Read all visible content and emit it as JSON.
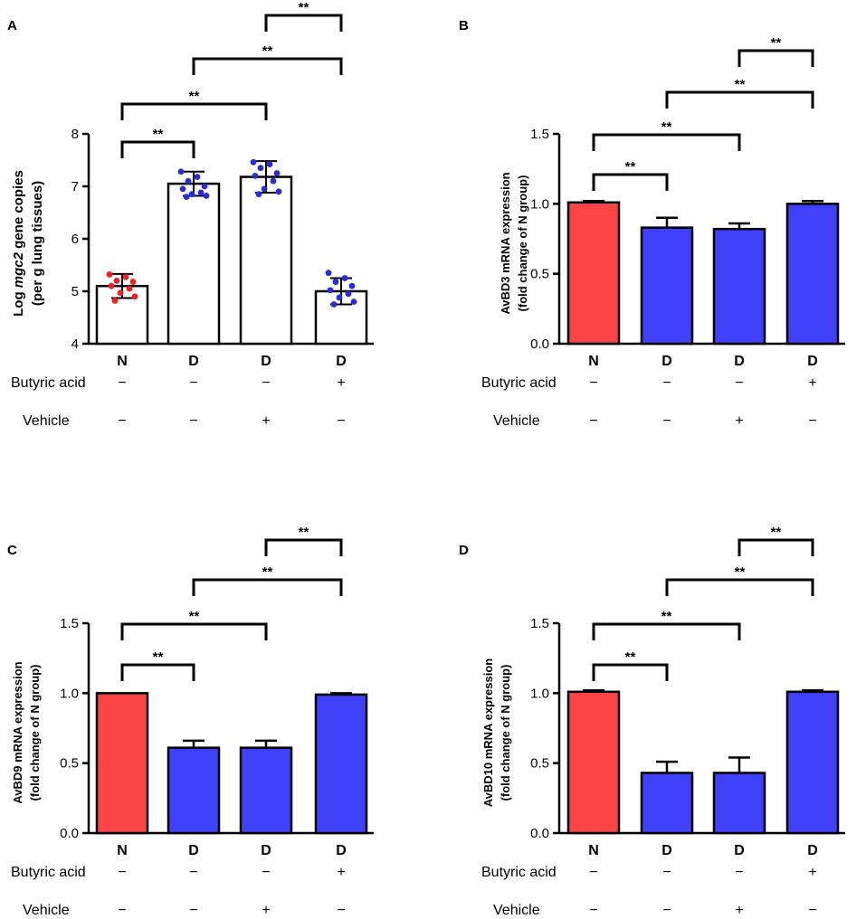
{
  "colors": {
    "n_bar": "#fa4446",
    "d_bar": "#4040f9",
    "n_dot": "#f02020",
    "d_dot": "#2a2ad8",
    "open_bar": "#ffffff"
  },
  "conditions": {
    "categories": [
      "N",
      "D",
      "D",
      "D"
    ],
    "butyric_label": "Butyric acid",
    "butyric": [
      "−",
      "−",
      "−",
      "+"
    ],
    "vehicle_label": "Vehicle",
    "vehicle": [
      "−",
      "−",
      "+",
      "−"
    ]
  },
  "chart_data": [
    {
      "panel": "A",
      "type": "bar",
      "style": "scatter-open",
      "ylabel_prefix": "Log ",
      "ylabel_italic": "mgc2",
      "ylabel_suffix": " gene copies",
      "ylabel2": "(per g lung tissues)",
      "ylim": [
        4,
        8
      ],
      "yticks": [
        4,
        5,
        6,
        7,
        8
      ],
      "ytick_labels": [
        "4",
        "5",
        "6",
        "7",
        "8"
      ],
      "categories": [
        "N",
        "D",
        "D",
        "D"
      ],
      "values": [
        5.1,
        7.05,
        7.18,
        5.0
      ],
      "errors": [
        0.23,
        0.23,
        0.3,
        0.25
      ],
      "points": [
        [
          5.32,
          5.27,
          5.2,
          5.18,
          5.1,
          5.05,
          4.97,
          4.9,
          4.82
        ],
        [
          7.28,
          7.18,
          7.1,
          7.0,
          6.95,
          6.88,
          6.85,
          6.82,
          6.8
        ],
        [
          7.46,
          7.42,
          7.35,
          7.25,
          7.2,
          7.1,
          6.95,
          6.9,
          6.85
        ],
        [
          5.35,
          5.25,
          5.18,
          5.1,
          5.02,
          4.95,
          4.88,
          4.8,
          4.75
        ]
      ],
      "brackets": [
        {
          "from": 0,
          "to": 1,
          "label": "**"
        },
        {
          "from": 0,
          "to": 2,
          "label": "**"
        },
        {
          "from": 1,
          "to": 3,
          "label": "**"
        },
        {
          "from": 2,
          "to": 3,
          "label": "**"
        }
      ]
    },
    {
      "panel": "B",
      "type": "bar",
      "style": "filled",
      "ylabel": "AvBD3 mRNA expression",
      "ylabel2": "(fold change of N group)",
      "ylim": [
        0,
        1.5
      ],
      "yticks": [
        0,
        0.5,
        1.0,
        1.5
      ],
      "ytick_labels": [
        "0.0",
        "0.5",
        "1.0",
        "1.5"
      ],
      "categories": [
        "N",
        "D",
        "D",
        "D"
      ],
      "values": [
        1.01,
        0.83,
        0.82,
        1.0
      ],
      "errors": [
        0.01,
        0.07,
        0.04,
        0.02
      ],
      "brackets": [
        {
          "from": 0,
          "to": 1,
          "label": "**"
        },
        {
          "from": 0,
          "to": 2,
          "label": "**"
        },
        {
          "from": 1,
          "to": 3,
          "label": "**"
        },
        {
          "from": 2,
          "to": 3,
          "label": "**"
        }
      ]
    },
    {
      "panel": "C",
      "type": "bar",
      "style": "filled",
      "ylabel": "AvBD9 mRNA expression",
      "ylabel2": "(fold change of N group)",
      "ylim": [
        0,
        1.5
      ],
      "yticks": [
        0,
        0.5,
        1.0,
        1.5
      ],
      "ytick_labels": [
        "0.0",
        "0.5",
        "1.0",
        "1.5"
      ],
      "categories": [
        "N",
        "D",
        "D",
        "D"
      ],
      "values": [
        1.0,
        0.61,
        0.61,
        0.99
      ],
      "errors": [
        0.0,
        0.05,
        0.05,
        0.01
      ],
      "brackets": [
        {
          "from": 0,
          "to": 1,
          "label": "**"
        },
        {
          "from": 0,
          "to": 2,
          "label": "**"
        },
        {
          "from": 1,
          "to": 3,
          "label": "**"
        },
        {
          "from": 2,
          "to": 3,
          "label": "**"
        }
      ]
    },
    {
      "panel": "D",
      "type": "bar",
      "style": "filled",
      "ylabel": "AvBD10 mRNA expression",
      "ylabel2": "(fold change of N group)",
      "ylim": [
        0,
        1.5
      ],
      "yticks": [
        0,
        0.5,
        1.0,
        1.5
      ],
      "ytick_labels": [
        "0.0",
        "0.5",
        "1.0",
        "1.5"
      ],
      "categories": [
        "N",
        "D",
        "D",
        "D"
      ],
      "values": [
        1.01,
        0.43,
        0.43,
        1.01
      ],
      "errors": [
        0.01,
        0.08,
        0.11,
        0.01
      ],
      "brackets": [
        {
          "from": 0,
          "to": 1,
          "label": "**"
        },
        {
          "from": 0,
          "to": 2,
          "label": "**"
        },
        {
          "from": 1,
          "to": 3,
          "label": "**"
        },
        {
          "from": 2,
          "to": 3,
          "label": "**"
        }
      ]
    }
  ]
}
